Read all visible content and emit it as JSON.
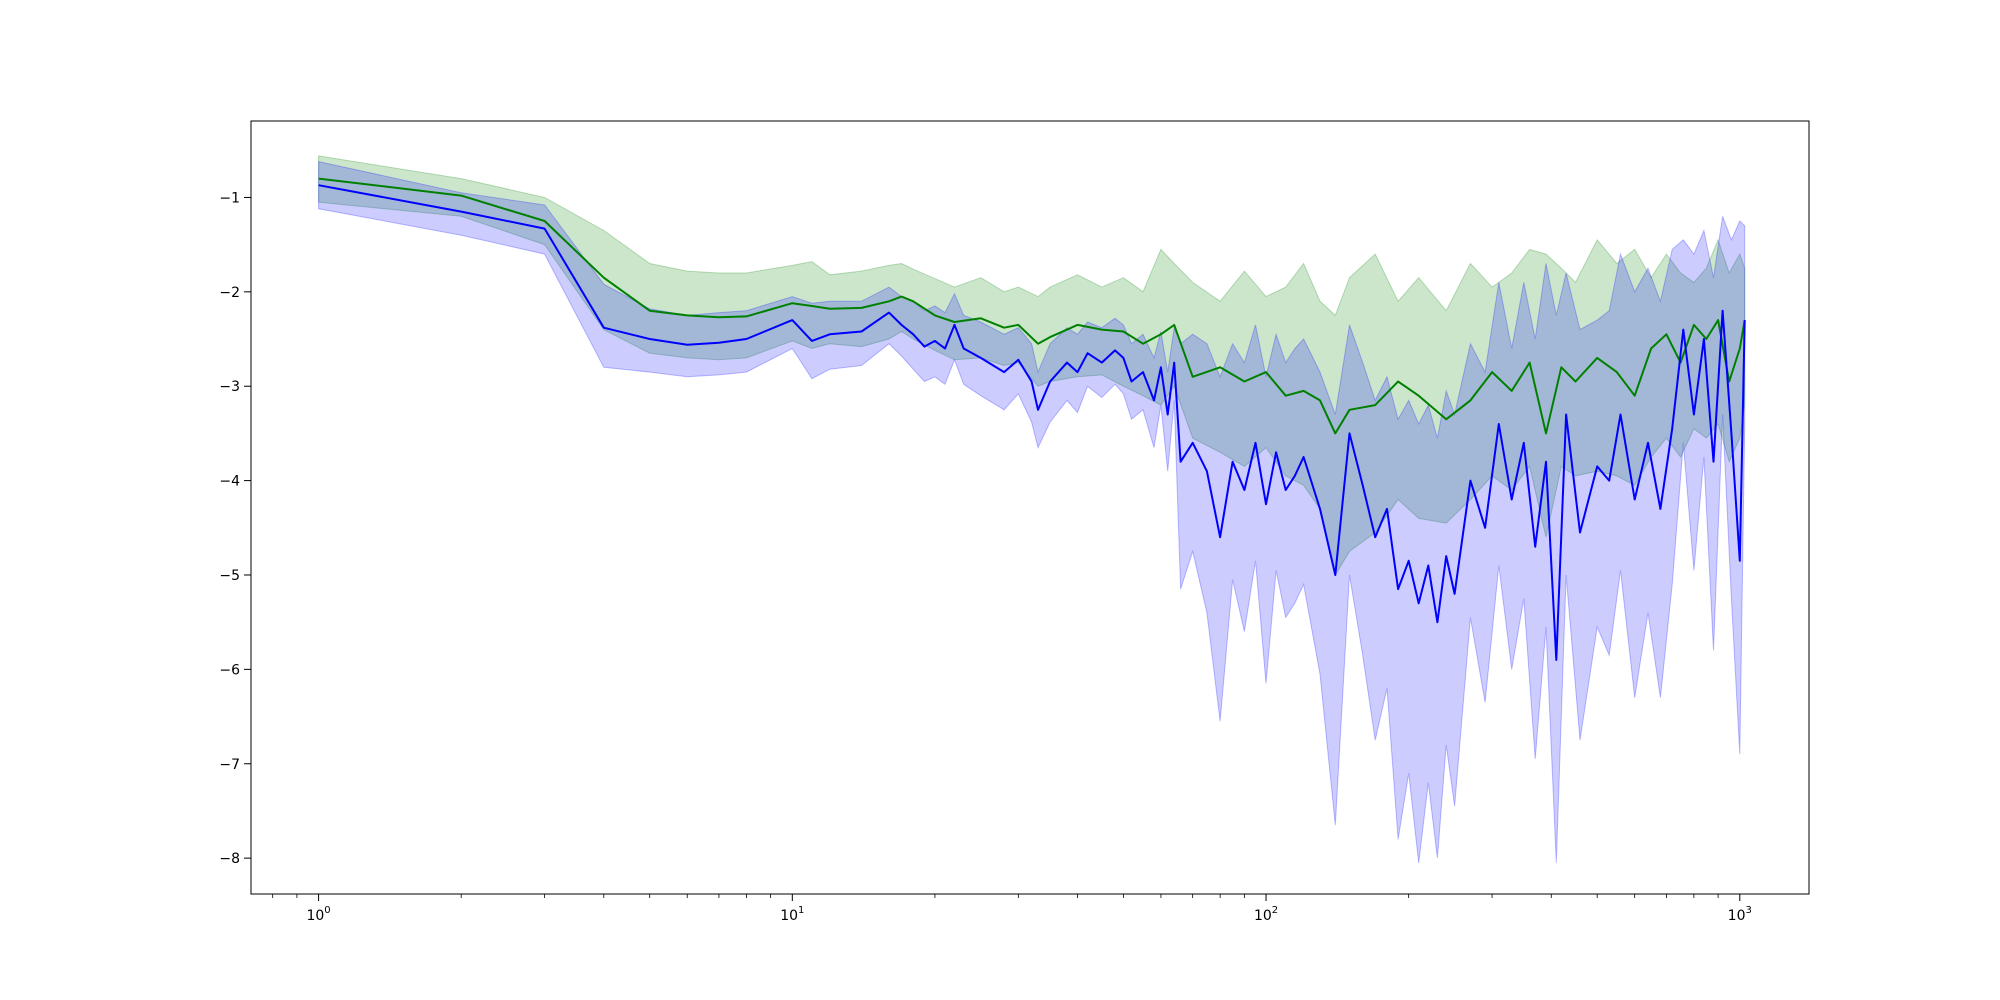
{
  "chart_data": {
    "type": "line",
    "title": "",
    "xlabel": "",
    "ylabel": "",
    "xscale": "log",
    "xlim": [
      0.72,
      1400
    ],
    "ylim": [
      -8.38,
      -0.19
    ],
    "grid": false,
    "legend": "none",
    "x_ticks": [
      {
        "value": 1,
        "label": "10",
        "exp": "0"
      },
      {
        "value": 10,
        "label": "10",
        "exp": "1"
      },
      {
        "value": 100,
        "label": "10",
        "exp": "2"
      },
      {
        "value": 1000,
        "label": "10",
        "exp": "3"
      }
    ],
    "y_ticks": [
      {
        "value": -1,
        "label": "−1"
      },
      {
        "value": -2,
        "label": "−2"
      },
      {
        "value": -3,
        "label": "−3"
      },
      {
        "value": -4,
        "label": "−4"
      },
      {
        "value": -5,
        "label": "−5"
      },
      {
        "value": -6,
        "label": "−6"
      },
      {
        "value": -7,
        "label": "−7"
      },
      {
        "value": -8,
        "label": "−8"
      }
    ],
    "series": [
      {
        "color": "#008000",
        "band_color": "#008000",
        "band_opacity": 0.2,
        "x": [
          1,
          2,
          3,
          4,
          5,
          6,
          7,
          8,
          10,
          11,
          12,
          14,
          16,
          17,
          18,
          20,
          22,
          25,
          28,
          30,
          33,
          35,
          40,
          45,
          50,
          55,
          60,
          64,
          70,
          80,
          90,
          100,
          110,
          120,
          130,
          140,
          150,
          170,
          190,
          210,
          240,
          270,
          300,
          330,
          360,
          390,
          420,
          450,
          500,
          550,
          600,
          650,
          700,
          750,
          800,
          850,
          900,
          950,
          1000,
          1024
        ],
        "y": [
          -0.8,
          -0.98,
          -1.25,
          -1.85,
          -2.2,
          -2.25,
          -2.27,
          -2.26,
          -2.12,
          -2.15,
          -2.18,
          -2.17,
          -2.1,
          -2.05,
          -2.1,
          -2.25,
          -2.32,
          -2.28,
          -2.38,
          -2.35,
          -2.55,
          -2.48,
          -2.35,
          -2.4,
          -2.42,
          -2.55,
          -2.45,
          -2.35,
          -2.9,
          -2.8,
          -2.95,
          -2.85,
          -3.1,
          -3.05,
          -3.15,
          -3.5,
          -3.25,
          -3.2,
          -2.95,
          -3.1,
          -3.35,
          -3.15,
          -2.85,
          -3.05,
          -2.75,
          -3.5,
          -2.8,
          -2.95,
          -2.7,
          -2.85,
          -3.1,
          -2.6,
          -2.45,
          -2.75,
          -2.35,
          -2.5,
          -2.3,
          -2.95,
          -2.6,
          -2.3
        ],
        "upper": [
          -0.56,
          -0.8,
          -1.0,
          -1.35,
          -1.7,
          -1.78,
          -1.8,
          -1.8,
          -1.72,
          -1.68,
          -1.82,
          -1.78,
          -1.72,
          -1.7,
          -1.76,
          -1.86,
          -1.95,
          -1.85,
          -2.0,
          -1.95,
          -2.05,
          -1.95,
          -1.82,
          -1.95,
          -1.85,
          -2.0,
          -1.55,
          -1.7,
          -1.9,
          -2.1,
          -1.78,
          -2.05,
          -1.95,
          -1.7,
          -2.1,
          -2.25,
          -1.85,
          -1.6,
          -2.1,
          -1.85,
          -2.2,
          -1.7,
          -1.95,
          -1.8,
          -1.55,
          -1.6,
          -1.75,
          -1.9,
          -1.45,
          -1.7,
          -1.55,
          -1.85,
          -1.6,
          -1.8,
          -1.9,
          -1.75,
          -1.45,
          -1.8,
          -1.6,
          -1.75
        ],
        "lower": [
          -1.05,
          -1.2,
          -1.5,
          -2.4,
          -2.65,
          -2.7,
          -2.72,
          -2.7,
          -2.52,
          -2.6,
          -2.55,
          -2.58,
          -2.5,
          -2.42,
          -2.5,
          -2.62,
          -2.72,
          -2.7,
          -2.78,
          -2.75,
          -3.0,
          -2.95,
          -2.9,
          -2.88,
          -3.0,
          -3.1,
          -3.2,
          -3.0,
          -3.55,
          -3.7,
          -3.85,
          -3.65,
          -3.95,
          -4.05,
          -4.3,
          -5.0,
          -4.75,
          -4.55,
          -4.2,
          -4.4,
          -4.45,
          -4.2,
          -3.95,
          -4.1,
          -3.85,
          -4.6,
          -3.85,
          -3.95,
          -3.9,
          -3.95,
          -4.05,
          -3.75,
          -3.55,
          -3.75,
          -3.45,
          -3.55,
          -3.4,
          -3.8,
          -3.55,
          -3.2
        ]
      },
      {
        "color": "#0000ff",
        "band_color": "#0000ff",
        "band_opacity": 0.2,
        "x": [
          1,
          2,
          3,
          4,
          5,
          6,
          7,
          8,
          10,
          11,
          12,
          14,
          16,
          17,
          18,
          19,
          20,
          21,
          22,
          23,
          25,
          28,
          30,
          32,
          33,
          35,
          38,
          40,
          42,
          45,
          48,
          50,
          52,
          55,
          58,
          60,
          62,
          64,
          66,
          70,
          75,
          80,
          85,
          90,
          95,
          100,
          105,
          110,
          115,
          120,
          130,
          140,
          150,
          160,
          170,
          180,
          190,
          200,
          210,
          220,
          230,
          240,
          250,
          270,
          290,
          310,
          330,
          350,
          370,
          390,
          410,
          430,
          460,
          500,
          530,
          560,
          600,
          640,
          680,
          720,
          760,
          800,
          840,
          880,
          920,
          960,
          1000,
          1024
        ],
        "y": [
          -0.87,
          -1.15,
          -1.33,
          -2.38,
          -2.5,
          -2.56,
          -2.54,
          -2.5,
          -2.3,
          -2.52,
          -2.45,
          -2.42,
          -2.22,
          -2.35,
          -2.45,
          -2.58,
          -2.52,
          -2.6,
          -2.35,
          -2.6,
          -2.7,
          -2.85,
          -2.72,
          -2.95,
          -3.25,
          -2.95,
          -2.75,
          -2.85,
          -2.65,
          -2.75,
          -2.62,
          -2.7,
          -2.95,
          -2.85,
          -3.15,
          -2.8,
          -3.3,
          -2.75,
          -3.8,
          -3.6,
          -3.9,
          -4.6,
          -3.8,
          -4.1,
          -3.6,
          -4.25,
          -3.7,
          -4.1,
          -3.95,
          -3.75,
          -4.3,
          -5.0,
          -3.5,
          -4.05,
          -4.6,
          -4.3,
          -5.15,
          -4.85,
          -5.3,
          -4.9,
          -5.5,
          -4.8,
          -5.2,
          -4.0,
          -4.5,
          -3.4,
          -4.2,
          -3.6,
          -4.7,
          -3.8,
          -5.9,
          -3.3,
          -4.55,
          -3.85,
          -4.0,
          -3.3,
          -4.2,
          -3.6,
          -4.3,
          -3.45,
          -2.4,
          -3.3,
          -2.5,
          -3.8,
          -2.2,
          -3.5,
          -4.85,
          -2.3
        ],
        "upper": [
          -0.62,
          -0.95,
          -1.08,
          -1.92,
          -2.18,
          -2.25,
          -2.22,
          -2.2,
          -2.05,
          -2.12,
          -2.1,
          -2.1,
          -1.95,
          -2.05,
          -2.1,
          -2.2,
          -2.15,
          -2.22,
          -2.02,
          -2.25,
          -2.32,
          -2.45,
          -2.38,
          -2.55,
          -2.85,
          -2.55,
          -2.38,
          -2.45,
          -2.32,
          -2.38,
          -2.28,
          -2.35,
          -2.55,
          -2.45,
          -2.7,
          -2.42,
          -2.85,
          -2.38,
          -2.55,
          -2.45,
          -2.55,
          -2.9,
          -2.55,
          -2.75,
          -2.35,
          -2.9,
          -2.45,
          -2.75,
          -2.6,
          -2.5,
          -2.85,
          -3.3,
          -2.35,
          -2.75,
          -3.15,
          -2.9,
          -3.35,
          -3.15,
          -3.4,
          -3.2,
          -3.55,
          -3.05,
          -3.3,
          -2.55,
          -2.85,
          -1.9,
          -2.6,
          -1.9,
          -2.5,
          -1.7,
          -2.25,
          -1.8,
          -2.4,
          -2.3,
          -2.2,
          -1.6,
          -2.0,
          -1.75,
          -2.1,
          -1.55,
          -1.45,
          -1.6,
          -1.35,
          -1.85,
          -1.2,
          -1.45,
          -1.25,
          -1.3
        ],
        "lower": [
          -1.12,
          -1.4,
          -1.6,
          -2.8,
          -2.85,
          -2.9,
          -2.88,
          -2.85,
          -2.6,
          -2.92,
          -2.82,
          -2.78,
          -2.55,
          -2.68,
          -2.82,
          -2.95,
          -2.9,
          -2.98,
          -2.72,
          -2.98,
          -3.1,
          -3.25,
          -3.08,
          -3.38,
          -3.65,
          -3.38,
          -3.15,
          -3.28,
          -3.0,
          -3.12,
          -2.98,
          -3.08,
          -3.35,
          -3.25,
          -3.65,
          -3.2,
          -3.9,
          -3.15,
          -5.15,
          -4.75,
          -5.4,
          -6.55,
          -5.05,
          -5.6,
          -4.85,
          -6.15,
          -4.95,
          -5.45,
          -5.3,
          -5.1,
          -6.05,
          -7.65,
          -5.0,
          -5.85,
          -6.75,
          -6.2,
          -7.8,
          -7.1,
          -8.05,
          -7.2,
          -8.0,
          -6.8,
          -7.45,
          -5.45,
          -6.35,
          -4.9,
          -6.0,
          -5.25,
          -6.95,
          -5.55,
          -8.05,
          -5.0,
          -6.75,
          -5.55,
          -5.85,
          -4.95,
          -6.3,
          -5.4,
          -6.3,
          -5.1,
          -3.6,
          -4.95,
          -3.75,
          -5.8,
          -3.3,
          -5.25,
          -6.9,
          -3.4
        ]
      }
    ]
  }
}
